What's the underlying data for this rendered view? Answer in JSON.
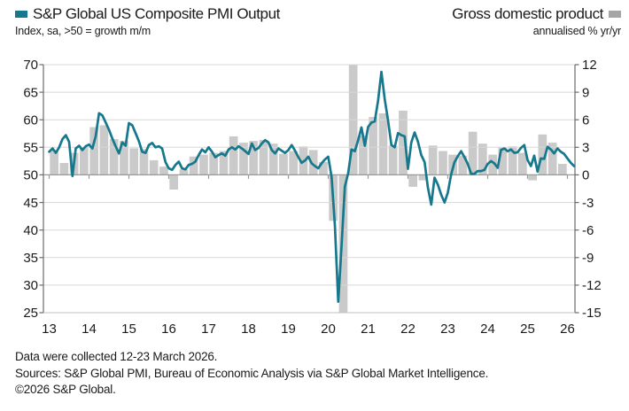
{
  "header": {
    "series1_label": "S&P Global US Composite PMI Output",
    "series1_sublabel": "Index, sa, >50 = growth m/m",
    "series2_label": "Gross domestic product",
    "series2_sublabel": "annualised % yr/yr"
  },
  "footer": {
    "line1": "Data were collected 12-23 March 2026.",
    "line2": "Sources: S&P Global PMI, Bureau of Economic Analysis via S&P Global Market Intelligence.",
    "line3": "©2026 S&P Global."
  },
  "colors": {
    "pmi_line": "#15788c",
    "gdp_bar": "#cacaca",
    "legend_gray": "#a6a6a6",
    "gridline": "#d8d8d8",
    "zero_axis": "#999999",
    "side_axis": "#6b6b6b",
    "bottom_axis": "#c0c0c0",
    "text": "#1a1a1a"
  },
  "chart_data": {
    "type": "line+bar",
    "title": "S&P Global US Composite PMI Output vs Gross domestic product",
    "left_axis": {
      "label": "Index, sa, >50 = growth m/m",
      "min": 25,
      "max": 70,
      "step": 5,
      "ticks": [
        70,
        65,
        60,
        55,
        50,
        45,
        40,
        35,
        30,
        25
      ]
    },
    "right_axis": {
      "label": "annualised % yr/yr",
      "min": -15,
      "max": 12,
      "step": 3,
      "ticks": [
        12,
        9,
        6,
        3,
        0,
        -3,
        -6,
        -9,
        -12,
        -15
      ]
    },
    "x_axis": {
      "tick_labels": [
        "13",
        "14",
        "15",
        "16",
        "17",
        "18",
        "19",
        "20",
        "21",
        "22",
        "23",
        "24",
        "25",
        "26"
      ]
    },
    "grid": true,
    "legend_position": "top",
    "series": [
      {
        "name": "S&P Global US Composite PMI Output",
        "type": "line",
        "axis": "left",
        "freq": "monthly",
        "start": "2013-01",
        "end": "2026-03",
        "values": [
          54.2,
          54.8,
          54.0,
          55.0,
          56.5,
          57.2,
          56.0,
          49.8,
          54.8,
          55.3,
          54.5,
          55.2,
          55.5,
          54.8,
          57.0,
          61.2,
          60.8,
          59.5,
          58.2,
          56.6,
          55.2,
          53.9,
          55.9,
          55.3,
          59.4,
          59.0,
          57.6,
          56.1,
          54.2,
          54.0,
          55.4,
          55.8,
          55.0,
          55.2,
          54.8,
          52.3,
          51.2,
          50.9,
          51.8,
          52.4,
          51.2,
          51.0,
          51.8,
          52.0,
          52.4,
          53.6,
          54.6,
          54.1,
          55.0,
          54.2,
          53.2,
          53.6,
          53.9,
          53.5,
          54.6,
          55.0,
          54.6,
          55.2,
          54.8,
          54.3,
          53.8,
          55.7,
          54.5,
          54.9,
          55.7,
          56.3,
          55.9,
          54.5,
          53.9,
          54.8,
          54.4,
          54.0,
          54.5,
          55.4,
          54.4,
          53.2,
          52.2,
          52.6,
          53.3,
          52.1,
          51.6,
          51.2,
          52.1,
          52.8,
          53.3,
          49.6,
          40.9,
          27.0,
          37.0,
          47.9,
          50.3,
          54.6,
          54.3,
          56.3,
          58.6,
          55.3,
          58.7,
          59.5,
          59.7,
          63.5,
          68.7,
          63.7,
          59.9,
          55.4,
          55.0,
          57.6,
          57.2,
          57.0,
          51.1,
          55.9,
          57.7,
          56.0,
          53.6,
          52.3,
          47.7,
          44.6,
          49.5,
          48.2,
          46.4,
          45.0,
          46.8,
          50.1,
          52.3,
          53.4,
          54.3,
          53.2,
          52.0,
          50.2,
          50.2,
          50.7,
          50.7,
          50.9,
          52.0,
          52.5,
          52.1,
          51.3,
          54.5,
          54.8,
          54.3,
          54.6,
          54.0,
          54.1,
          54.9,
          55.4,
          52.7,
          51.6,
          53.5,
          50.6,
          53.0,
          52.9,
          55.1,
          54.6,
          53.9,
          54.8,
          54.2,
          53.8,
          53.0,
          52.2,
          51.6
        ]
      },
      {
        "name": "Gross domestic product",
        "type": "bar",
        "axis": "right",
        "freq": "quarterly",
        "start": "2013-Q1",
        "end": "2025-Q4",
        "clip_to_axis_range": true,
        "values": [
          2.7,
          1.3,
          2.4,
          3.0,
          5.2,
          5.4,
          3.9,
          3.7,
          2.9,
          2.8,
          1.6,
          0.9,
          -1.6,
          0.6,
          2.0,
          2.2,
          2.4,
          2.6,
          4.2,
          3.5,
          3.7,
          3.8,
          3.4,
          2.3,
          2.6,
          3.1,
          2.7,
          1.4,
          -5.0,
          -30.0,
          33.4,
          4.3,
          6.3,
          6.7,
          3.2,
          7.0,
          -1.3,
          -0.6,
          3.2,
          2.6,
          2.2,
          2.1,
          4.7,
          3.4,
          2.2,
          3.0,
          3.1,
          2.4,
          -0.6,
          4.4,
          3.5,
          1.2
        ]
      }
    ]
  }
}
